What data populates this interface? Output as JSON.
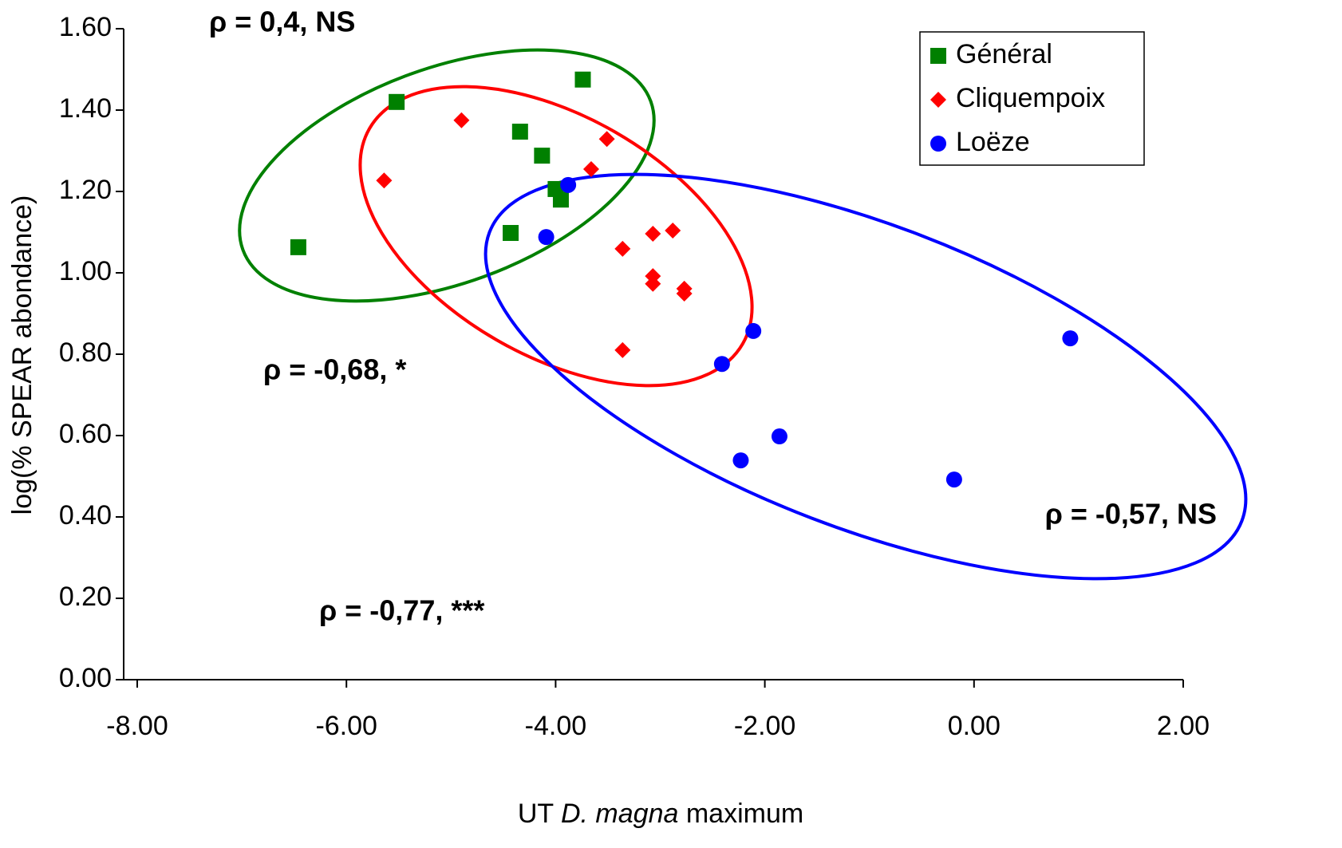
{
  "chart_data": {
    "type": "scatter",
    "x_label_prefix": "UT",
    "x_label_italic": "D. magna",
    "x_label_suffix": "maximum",
    "y_label": "log(% SPEAR abondance)",
    "xlim": [
      -8,
      2
    ],
    "xticks": [
      {
        "value": -8,
        "label": "-8.00"
      },
      {
        "value": -6,
        "label": "-6.00"
      },
      {
        "value": -4,
        "label": "-4.00"
      },
      {
        "value": -2,
        "label": "-2.00"
      },
      {
        "value": 0,
        "label": "0.00"
      },
      {
        "value": 2,
        "label": "2.00"
      }
    ],
    "ylim": [
      0,
      1.6
    ],
    "yticks": [
      {
        "value": 0,
        "label": "0.00"
      },
      {
        "value": 0.2,
        "label": "0.20"
      },
      {
        "value": 0.4,
        "label": "0.40"
      },
      {
        "value": 0.6,
        "label": "0.60"
      },
      {
        "value": 0.8,
        "label": "0.80"
      },
      {
        "value": 1,
        "label": "1.00"
      },
      {
        "value": 1.2,
        "label": "1.20"
      },
      {
        "value": 1.4,
        "label": "1.40"
      },
      {
        "value": 1.6,
        "label": "1.60"
      }
    ],
    "legend": "top-right",
    "series": [
      {
        "name": "Général",
        "color": "#008000",
        "marker": "square",
        "x": [
          -6.46,
          -5.52,
          -3.74,
          -4.34,
          -4.13,
          -4.0,
          -3.95,
          -4.43
        ],
        "values": [
          1.063,
          1.42,
          1.475,
          1.347,
          1.288,
          1.206,
          1.18,
          1.098
        ]
      },
      {
        "name": "Cliquempoix",
        "color": "#ff0000",
        "marker": "diamond",
        "x": [
          -5.64,
          -4.9,
          -3.51,
          -3.66,
          -3.36,
          -3.07,
          -2.88,
          -3.07,
          -3.07,
          -2.77,
          -2.77,
          -3.36
        ],
        "values": [
          1.227,
          1.375,
          1.329,
          1.255,
          1.059,
          1.096,
          1.104,
          0.992,
          0.973,
          0.961,
          0.949,
          0.81
        ]
      },
      {
        "name": "Loëze",
        "color": "#0000ff",
        "marker": "circle",
        "x": [
          -3.88,
          -4.09,
          -2.11,
          -2.41,
          -1.86,
          -2.23,
          -0.19,
          0.92
        ],
        "values": [
          1.216,
          1.088,
          0.857,
          0.776,
          0.598,
          0.539,
          0.492,
          0.839
        ]
      }
    ],
    "annotations": [
      {
        "text": "ρ = 0,4, NS",
        "color": "#008000"
      },
      {
        "text": "ρ = -0,68, *",
        "color": "#ff0000"
      },
      {
        "text": "ρ = -0,57, NS",
        "color": "#0000ff"
      },
      {
        "text": "ρ = -0,77, ***",
        "color": "#000000"
      }
    ]
  }
}
